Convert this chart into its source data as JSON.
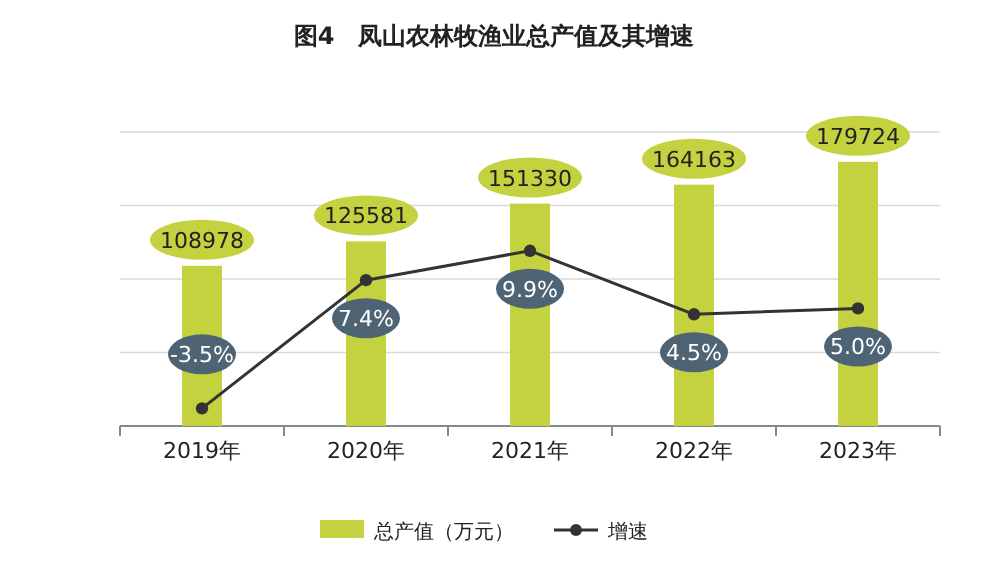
{
  "chart_data": {
    "type": "bar",
    "title": "图4　凤山农林牧渔业总产值及其增速",
    "categories": [
      "2019年",
      "2020年",
      "2021年",
      "2022年",
      "2023年"
    ],
    "series": [
      {
        "name": "总产值（万元）",
        "color": "#c4d23f",
        "values": [
          108978,
          125581,
          151330,
          164163,
          179724
        ],
        "value_labels": [
          "108978",
          "125581",
          "151330",
          "164163",
          "179724"
        ]
      },
      {
        "name": "增速",
        "type": "line",
        "axis": "y2",
        "color": "#333333",
        "values": [
          -3.5,
          7.4,
          9.9,
          4.5,
          5.0
        ],
        "value_labels": [
          "-3.5%",
          "7.4%",
          "9.9%",
          "4.5%",
          "5.0%"
        ]
      }
    ],
    "ylim": [
      0,
      200000
    ],
    "yticks": [
      {
        "value": 0,
        "label": null
      },
      {
        "value": 50000,
        "label": null
      },
      {
        "value": 100000,
        "label": null
      },
      {
        "value": 150000,
        "label": null
      },
      {
        "value": 200000,
        "label": null
      }
    ],
    "y2lim": [
      -5,
      20
    ],
    "grid": "y",
    "legend": "bottom",
    "marker": "circle",
    "line_style": "solid",
    "tick_labels": "x"
  }
}
